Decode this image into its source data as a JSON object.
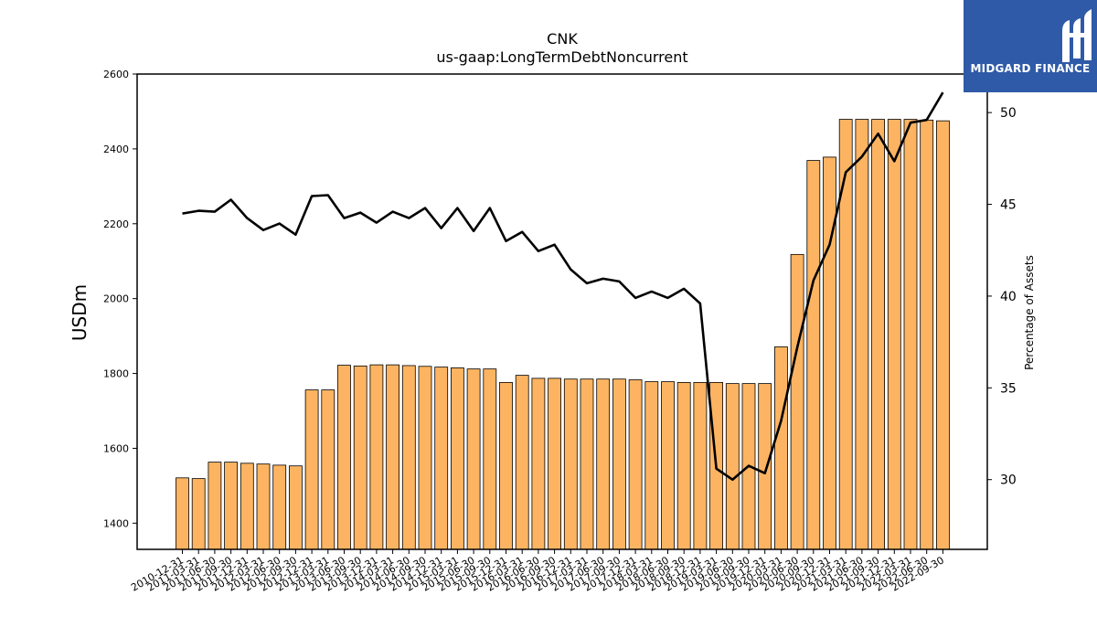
{
  "chart_data": {
    "type": "bar",
    "title": "CNK",
    "subtitle": "us-gaap:LongTermDebtNoncurrent",
    "ylabel": "USDm",
    "y2label": "Percentage of Assets",
    "ylim": [
      1330,
      2600
    ],
    "y_ticks": [
      1400,
      1600,
      1800,
      2000,
      2200,
      2400,
      2600
    ],
    "y2lim": [
      26.2,
      52.1
    ],
    "y2_ticks": [
      30,
      35,
      40,
      45,
      50
    ],
    "categories": [
      "2010-12-31",
      "2011-03-31",
      "2011-06-30",
      "2011-09-30",
      "2011-12-31",
      "2012-03-31",
      "2012-06-30",
      "2012-09-30",
      "2012-12-31",
      "2013-03-31",
      "2013-06-30",
      "2013-09-30",
      "2013-12-31",
      "2014-03-31",
      "2014-06-30",
      "2014-09-30",
      "2014-12-31",
      "2015-03-31",
      "2015-06-30",
      "2015-09-30",
      "2015-12-31",
      "2016-03-31",
      "2016-06-30",
      "2016-09-30",
      "2016-12-31",
      "2017-03-31",
      "2017-06-30",
      "2017-09-30",
      "2017-12-31",
      "2018-03-31",
      "2018-06-30",
      "2018-09-30",
      "2018-12-31",
      "2019-03-31",
      "2019-06-30",
      "2019-09-30",
      "2019-12-31",
      "2020-03-31",
      "2020-06-30",
      "2020-09-30",
      "2020-12-31",
      "2021-03-31",
      "2021-06-30",
      "2021-09-30",
      "2021-12-31",
      "2022-03-31",
      "2022-06-30",
      "2022-09-30"
    ],
    "series": [
      {
        "kind": "bar",
        "color": "#fdb462",
        "values": [
          1521,
          1519,
          1563,
          1563,
          1560,
          1558,
          1555,
          1553,
          1756,
          1756,
          1822,
          1820,
          1823,
          1823,
          1821,
          1819,
          1817,
          1815,
          1812,
          1812,
          1776,
          1795,
          1787,
          1787,
          1785,
          1785,
          1785,
          1785,
          1783,
          1778,
          1778,
          1776,
          1776,
          1776,
          1773,
          1773,
          1773,
          1871,
          2118,
          2369,
          2378,
          2479,
          2479,
          2479,
          2479,
          2479,
          2477,
          2475
        ]
      },
      {
        "kind": "line",
        "axis": "right",
        "color": "#000000",
        "values": [
          44.5,
          44.65,
          44.6,
          45.25,
          44.25,
          43.6,
          43.95,
          43.35,
          45.45,
          45.5,
          44.25,
          44.55,
          44.0,
          44.6,
          44.25,
          44.8,
          43.7,
          44.8,
          43.55,
          44.8,
          43.0,
          43.5,
          42.45,
          42.8,
          41.45,
          40.7,
          40.95,
          40.8,
          39.9,
          40.25,
          39.9,
          40.4,
          39.6,
          30.6,
          30.0,
          30.75,
          30.35,
          33.2,
          37.2,
          40.85,
          42.8,
          46.75,
          47.6,
          48.85,
          47.35,
          49.45,
          49.6,
          51.1
        ]
      }
    ]
  },
  "logo": {
    "text": "MIDGARD FINANCE"
  }
}
